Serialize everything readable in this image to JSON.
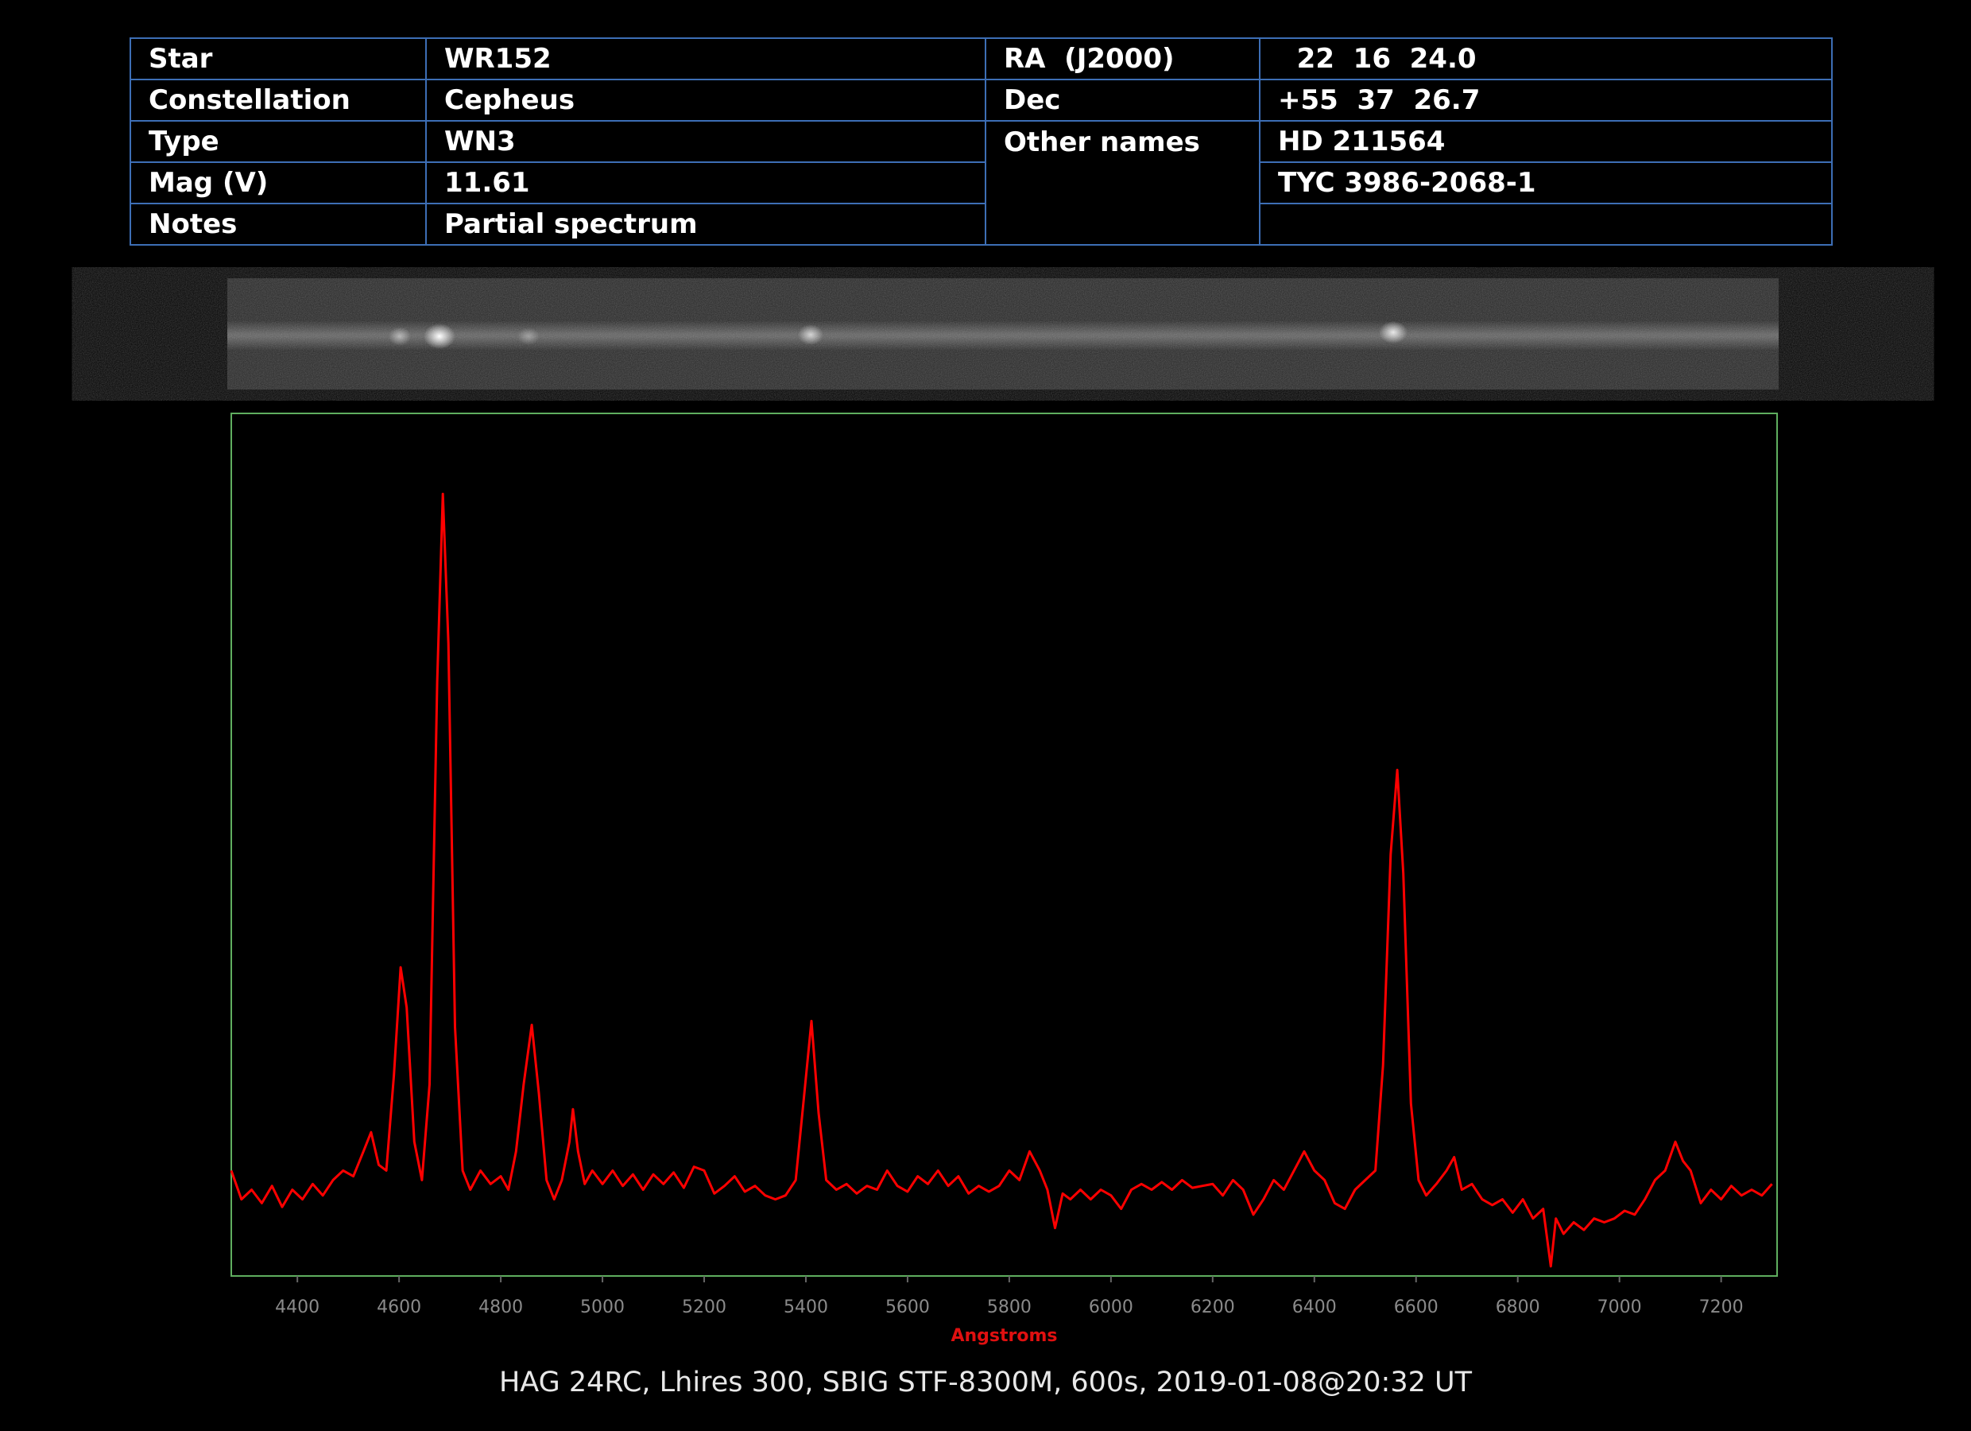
{
  "table": {
    "rows": [
      [
        "Star",
        "WR152",
        "RA  (J2000)",
        "  22  16  24.0"
      ],
      [
        "Constellation",
        "Cepheus",
        "Dec",
        "+55  37  26.7"
      ],
      [
        "Type",
        "WN3",
        "Other names",
        "HD 211564"
      ],
      [
        "Mag (V)",
        "11.61",
        "TYC 3986-2068-1"
      ],
      [
        "Notes",
        "Partial spectrum"
      ]
    ]
  },
  "chart_data": {
    "type": "line",
    "xlabel": "Angstroms",
    "color": "#ff0000",
    "frame_color": "#5fae5f",
    "xlim": [
      4270,
      7310
    ],
    "ylim": [
      0.5,
      5
    ],
    "xticks": [
      4400,
      4600,
      4800,
      5000,
      5200,
      5400,
      5600,
      5800,
      6000,
      6200,
      6400,
      6600,
      6800,
      7000,
      7200
    ],
    "x": [
      4270,
      4290,
      4310,
      4330,
      4350,
      4370,
      4390,
      4410,
      4430,
      4450,
      4470,
      4490,
      4510,
      4530,
      4545,
      4560,
      4575,
      4590,
      4603,
      4615,
      4630,
      4645,
      4660,
      4675,
      4686,
      4697,
      4710,
      4725,
      4740,
      4760,
      4780,
      4800,
      4815,
      4830,
      4845,
      4861,
      4875,
      4890,
      4905,
      4920,
      4935,
      4942,
      4952,
      4965,
      4980,
      5000,
      5020,
      5040,
      5060,
      5080,
      5100,
      5120,
      5140,
      5160,
      5180,
      5200,
      5220,
      5240,
      5260,
      5280,
      5300,
      5320,
      5340,
      5360,
      5380,
      5395,
      5411,
      5425,
      5440,
      5460,
      5480,
      5500,
      5520,
      5540,
      5560,
      5580,
      5600,
      5620,
      5640,
      5660,
      5680,
      5700,
      5720,
      5740,
      5760,
      5780,
      5800,
      5820,
      5840,
      5860,
      5875,
      5890,
      5905,
      5920,
      5940,
      5960,
      5980,
      6000,
      6020,
      6040,
      6060,
      6080,
      6100,
      6120,
      6140,
      6160,
      6180,
      6200,
      6220,
      6240,
      6260,
      6280,
      6300,
      6320,
      6340,
      6360,
      6380,
      6400,
      6420,
      6440,
      6460,
      6480,
      6500,
      6520,
      6535,
      6550,
      6563,
      6575,
      6590,
      6605,
      6620,
      6640,
      6660,
      6675,
      6690,
      6710,
      6730,
      6750,
      6770,
      6790,
      6810,
      6830,
      6850,
      6865,
      6875,
      6890,
      6910,
      6930,
      6950,
      6970,
      6990,
      7010,
      7030,
      7050,
      7070,
      7090,
      7110,
      7125,
      7140,
      7160,
      7180,
      7200,
      7220,
      7240,
      7260,
      7280,
      7300
    ],
    "values": [
      1.05,
      0.9,
      0.95,
      0.88,
      0.97,
      0.86,
      0.95,
      0.9,
      0.98,
      0.92,
      1.0,
      1.05,
      1.02,
      1.15,
      1.25,
      1.08,
      1.05,
      1.55,
      2.11,
      1.9,
      1.2,
      1.0,
      1.5,
      3.6,
      4.58,
      3.8,
      1.8,
      1.05,
      0.95,
      1.05,
      0.98,
      1.02,
      0.95,
      1.15,
      1.5,
      1.81,
      1.45,
      1.0,
      0.9,
      1.0,
      1.2,
      1.37,
      1.15,
      0.98,
      1.05,
      0.98,
      1.05,
      0.97,
      1.03,
      0.95,
      1.03,
      0.98,
      1.04,
      0.96,
      1.07,
      1.05,
      0.93,
      0.97,
      1.02,
      0.94,
      0.97,
      0.92,
      0.9,
      0.92,
      1.0,
      1.4,
      1.83,
      1.35,
      1.0,
      0.95,
      0.98,
      0.93,
      0.97,
      0.95,
      1.05,
      0.97,
      0.94,
      1.02,
      0.98,
      1.05,
      0.97,
      1.02,
      0.93,
      0.97,
      0.94,
      0.97,
      1.05,
      1.0,
      1.15,
      1.05,
      0.95,
      0.75,
      0.93,
      0.9,
      0.95,
      0.9,
      0.95,
      0.92,
      0.85,
      0.95,
      0.98,
      0.95,
      0.99,
      0.95,
      1.0,
      0.96,
      0.97,
      0.98,
      0.92,
      1.0,
      0.95,
      0.82,
      0.9,
      1.0,
      0.95,
      1.05,
      1.15,
      1.05,
      1.0,
      0.88,
      0.85,
      0.95,
      1.0,
      1.05,
      1.6,
      2.7,
      3.14,
      2.6,
      1.4,
      1.0,
      0.92,
      0.98,
      1.05,
      1.12,
      0.95,
      0.98,
      0.9,
      0.87,
      0.9,
      0.83,
      0.9,
      0.8,
      0.85,
      0.55,
      0.8,
      0.72,
      0.78,
      0.74,
      0.8,
      0.78,
      0.8,
      0.84,
      0.82,
      0.9,
      1.0,
      1.05,
      1.2,
      1.1,
      1.05,
      0.88,
      0.95,
      0.9,
      0.97,
      0.92,
      0.95,
      0.92,
      0.98
    ]
  },
  "caption": "HAG 24RC, Lhires 300, SBIG STF-8300M, 600s, 2019-01-08@20:32 UT"
}
